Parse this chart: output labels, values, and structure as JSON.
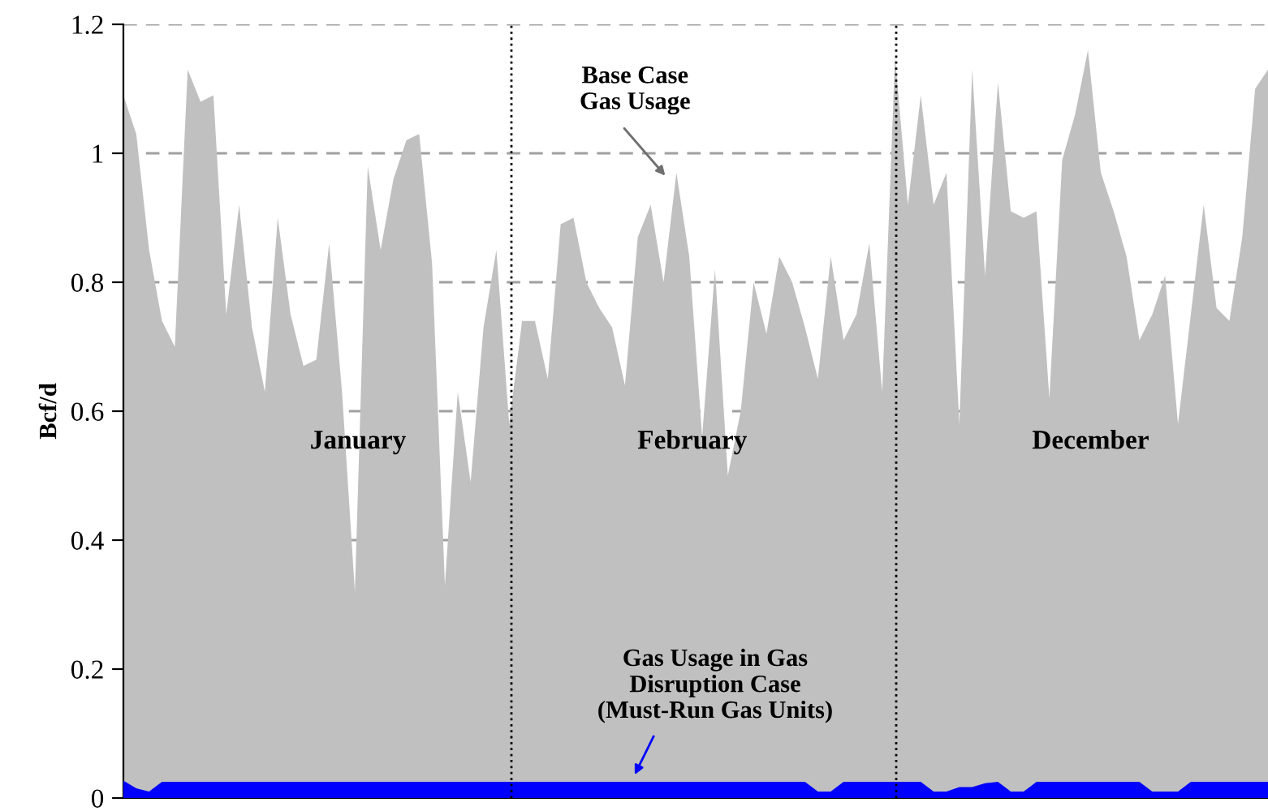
{
  "chart_data": {
    "type": "area",
    "ylabel": "Bcf/d",
    "categories": [
      null,
      null,
      null,
      null,
      null,
      null,
      null,
      null,
      null,
      null,
      null,
      null,
      null,
      null,
      null,
      null,
      null,
      null,
      null,
      null,
      null,
      null,
      null,
      null,
      null,
      null,
      null,
      null,
      null,
      null,
      null,
      null,
      null,
      null,
      null,
      null,
      null,
      null,
      null,
      null,
      null,
      null,
      null,
      null,
      null,
      null,
      null,
      null,
      null,
      null,
      null,
      null,
      null,
      null,
      null,
      null,
      null,
      null,
      null,
      null,
      null,
      null,
      null,
      null,
      null,
      null,
      null,
      null,
      null,
      null,
      null,
      null,
      null,
      null,
      null,
      null,
      null,
      null,
      null,
      null,
      null,
      null,
      null,
      null,
      null,
      null,
      null,
      null,
      null,
      null
    ],
    "series": [
      {
        "color": "#c0c0c0",
        "values": [
          1.09,
          1.03,
          0.85,
          0.74,
          0.7,
          1.13,
          1.08,
          1.09,
          0.75,
          0.92,
          0.73,
          0.63,
          0.9,
          0.75,
          0.67,
          0.68,
          0.86,
          0.63,
          0.32,
          0.98,
          0.85,
          0.96,
          1.02,
          1.03,
          0.83,
          0.33,
          0.63,
          0.49,
          0.73,
          0.85,
          0.58,
          0.74,
          0.74,
          0.65,
          0.89,
          0.9,
          0.8,
          0.76,
          0.73,
          0.64,
          0.87,
          0.92,
          0.8,
          0.97,
          0.84,
          0.56,
          0.82,
          0.5,
          0.6,
          0.8,
          0.72,
          0.84,
          0.8,
          0.73,
          0.65,
          0.84,
          0.71,
          0.75,
          0.86,
          0.63,
          1.15,
          0.92,
          1.09,
          0.92,
          0.97,
          0.58,
          1.13,
          0.81,
          1.11,
          0.91,
          0.9,
          0.91,
          0.62,
          0.99,
          1.06,
          1.16,
          0.97,
          0.91,
          0.84,
          0.71,
          0.75,
          0.81,
          0.58,
          0.75,
          0.92,
          0.76,
          0.74,
          0.87,
          1.1,
          1.13
        ]
      },
      {
        "color": "#0000ff",
        "values": [
          0.027,
          0.015,
          0.01,
          0.025,
          0.025,
          0.025,
          0.025,
          0.025,
          0.025,
          0.025,
          0.025,
          0.025,
          0.025,
          0.025,
          0.025,
          0.025,
          0.025,
          0.025,
          0.025,
          0.025,
          0.025,
          0.025,
          0.025,
          0.025,
          0.025,
          0.025,
          0.025,
          0.025,
          0.025,
          0.025,
          0.025,
          0.025,
          0.025,
          0.025,
          0.025,
          0.025,
          0.025,
          0.025,
          0.025,
          0.025,
          0.025,
          0.025,
          0.025,
          0.025,
          0.025,
          0.025,
          0.025,
          0.025,
          0.025,
          0.025,
          0.025,
          0.025,
          0.025,
          0.025,
          0.01,
          0.01,
          0.025,
          0.025,
          0.025,
          0.025,
          0.025,
          0.025,
          0.025,
          0.01,
          0.01,
          0.017,
          0.017,
          0.023,
          0.025,
          0.01,
          0.01,
          0.025,
          0.025,
          0.025,
          0.025,
          0.025,
          0.025,
          0.025,
          0.025,
          0.025,
          0.01,
          0.01,
          0.01,
          0.025,
          0.025,
          0.025,
          0.025,
          0.025,
          0.025,
          0.025
        ]
      }
    ],
    "ylim": [
      0,
      1.2
    ],
    "yticks": [
      0,
      0.2,
      0.4,
      0.6,
      0.8,
      1,
      1.2
    ],
    "grid": "y",
    "annotations": [
      "January",
      "February",
      "December",
      "Base Case\nGas Usage",
      "Gas Usage in Gas\nDisruption Case\n(Must-Run Gas Units)"
    ]
  }
}
